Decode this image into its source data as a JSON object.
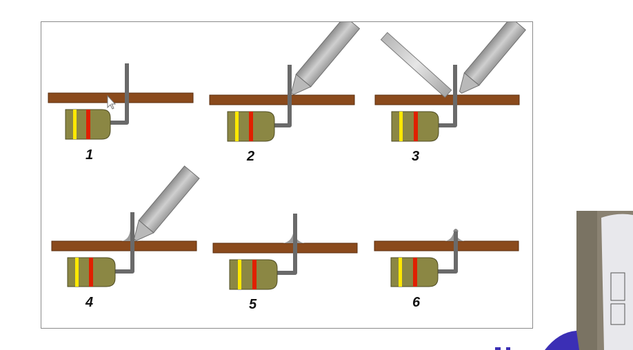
{
  "steps": [
    {
      "label": "1",
      "tool": "none"
    },
    {
      "label": "2",
      "tool": "iron"
    },
    {
      "label": "3",
      "tool": "iron-and-solder"
    },
    {
      "label": "4",
      "tool": "iron"
    },
    {
      "label": "5",
      "tool": "none"
    },
    {
      "label": "6",
      "tool": "none"
    }
  ],
  "colors": {
    "board": "#8a4a1c",
    "board_edge": "#5a2e0e",
    "resistor_body": "#8b8744",
    "band_yellow": "#ffe800",
    "band_red": "#e02000",
    "lead": "#6a6a6a",
    "iron": "#a9a9a9",
    "accent_blue": "#3b2fb5"
  }
}
